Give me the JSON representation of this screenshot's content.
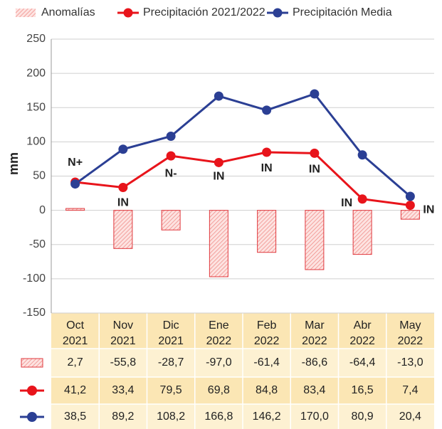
{
  "chart_data": {
    "type": "bar_line_table",
    "ylabel": "mm",
    "categories": [
      [
        "Oct",
        "2021"
      ],
      [
        "Nov",
        "2021"
      ],
      [
        "Dic",
        "2021"
      ],
      [
        "Ene",
        "2022"
      ],
      [
        "Feb",
        "2022"
      ],
      [
        "Mar",
        "2022"
      ],
      [
        "Abr",
        "2022"
      ],
      [
        "May",
        "2022"
      ]
    ],
    "ylim": [
      -150,
      250
    ],
    "yticks": [
      -150,
      -100,
      -50,
      0,
      50,
      100,
      150,
      200,
      250
    ],
    "grid": true,
    "series": [
      {
        "name": "Anomalías",
        "type": "bar",
        "color": "#e0393e",
        "values": [
          2.7,
          -55.8,
          -28.7,
          -97.0,
          -61.4,
          -86.6,
          -64.4,
          -13.0
        ],
        "value_labels": [
          "2,7",
          "-55,8",
          "-28,7",
          "-97,0",
          "-61,4",
          "-86,6",
          "-64,4",
          "-13,0"
        ]
      },
      {
        "name": "Precipitación 2021/2022",
        "type": "line",
        "color": "#e8141b",
        "values": [
          41.2,
          33.4,
          79.5,
          69.8,
          84.8,
          83.4,
          16.5,
          7.4
        ],
        "value_labels": [
          "41,2",
          "33,4",
          "79,5",
          "69,8",
          "84,8",
          "83,4",
          "16,5",
          "7,4"
        ]
      },
      {
        "name": "Precipitación Media",
        "type": "line",
        "color": "#2b3f94",
        "values": [
          38.5,
          89.2,
          108.2,
          166.8,
          146.2,
          170.0,
          80.9,
          20.4
        ],
        "value_labels": [
          "38,5",
          "89,2",
          "108,2",
          "166,8",
          "146,2",
          "170,0",
          "80,9",
          "20,4"
        ]
      }
    ],
    "annotations": [
      "N+",
      "IN",
      "N-",
      "IN",
      "IN",
      "IN",
      "IN",
      "IN"
    ]
  }
}
